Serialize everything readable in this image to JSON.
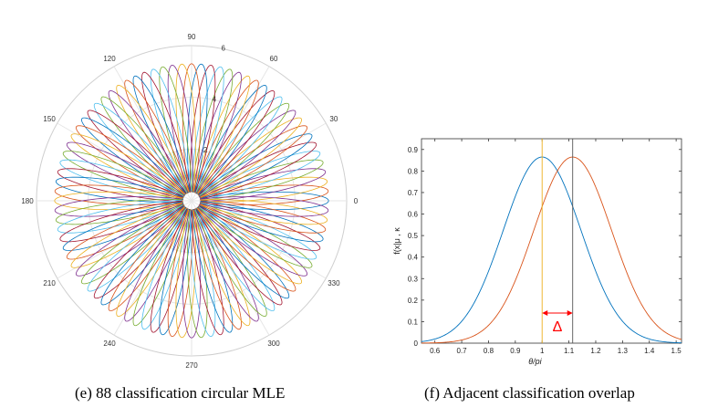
{
  "captions": {
    "left": "(e) 88 classification circular MLE",
    "right": "(f) Adjacent classification overlap"
  },
  "chart_data": [
    {
      "type": "polar-line",
      "title": "",
      "angle_ticks": [
        "0",
        "30",
        "60",
        "90",
        "120",
        "150",
        "180",
        "210",
        "240",
        "270",
        "300",
        "330"
      ],
      "radial_ticks": [
        "2",
        "4",
        "6"
      ],
      "radial_tick_values": [
        2,
        4,
        6
      ],
      "rlim": [
        0,
        6
      ],
      "series_count": 88,
      "series_description": "88 von Mises density curves, centers evenly spaced around the circle",
      "kappa": 88,
      "peak_radius": 5.3,
      "grid": true,
      "colors": [
        "#0072BD",
        "#D95319",
        "#EDB120",
        "#7E2F8E",
        "#77AC30",
        "#4DBEEE",
        "#A2142F"
      ]
    },
    {
      "type": "line",
      "title": "",
      "xlabel": "θ/pi",
      "ylabel": "f(x|μ , κ",
      "xlim": [
        0.55,
        1.52
      ],
      "ylim": [
        0,
        0.95
      ],
      "x_ticks": [
        "0.6",
        "0.7",
        "0.8",
        "0.9",
        "1",
        "1.1",
        "1.2",
        "1.3",
        "1.4",
        "1.5"
      ],
      "x_tick_values": [
        0.6,
        0.7,
        0.8,
        0.9,
        1.0,
        1.1,
        1.2,
        1.3,
        1.4,
        1.5
      ],
      "y_ticks": [
        "0",
        "0.1",
        "0.2",
        "0.3",
        "0.4",
        "0.5",
        "0.6",
        "0.7",
        "0.8",
        "0.9"
      ],
      "y_tick_values": [
        0,
        0.1,
        0.2,
        0.3,
        0.4,
        0.5,
        0.6,
        0.7,
        0.8,
        0.9
      ],
      "series": [
        {
          "mu": 1.0,
          "sigma": 0.145,
          "peak": 0.865,
          "color": "#0072BD"
        },
        {
          "mu": 1.114,
          "sigma": 0.145,
          "peak": 0.865,
          "color": "#D95319"
        }
      ],
      "vlines": [
        {
          "x": 1.0,
          "color": "#EDB120"
        },
        {
          "x": 1.114,
          "color": "#555555"
        }
      ],
      "annotation": {
        "from": 1.0,
        "to": 1.114,
        "label": "Δ",
        "color": "#FF0000"
      },
      "grid": false
    }
  ]
}
